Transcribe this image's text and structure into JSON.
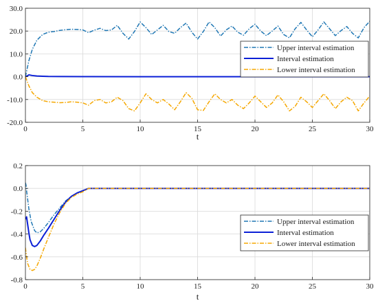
{
  "chart_data": [
    {
      "type": "line",
      "xlabel": "t",
      "ylabel": "",
      "xlim": [
        0,
        30
      ],
      "ylim": [
        -20,
        30
      ],
      "xticks": [
        0,
        5,
        10,
        15,
        20,
        25,
        30
      ],
      "yticks": [
        30,
        20,
        10,
        0,
        -10,
        -20
      ],
      "xtick_labels": [
        "0",
        "5",
        "10",
        "15",
        "20",
        "25",
        "30"
      ],
      "ytick_labels": [
        "30.0",
        "20.0",
        "10.0",
        "0.0",
        "-10.0",
        "-20.0"
      ],
      "grid": true,
      "legend_position": "center-right",
      "series": [
        {
          "name": "Upper interval estimation",
          "color": "#1f77b4",
          "dash": "dashdot",
          "x": [
            0,
            0.3,
            0.6,
            1,
            1.5,
            2,
            2.5,
            3,
            3.5,
            4,
            4.5,
            5,
            5.5,
            6,
            6.5,
            7,
            7.5,
            8,
            8.5,
            9,
            9.5,
            10,
            10.5,
            11,
            11.5,
            12,
            12.5,
            13,
            13.5,
            14,
            14.5,
            15,
            15.5,
            16,
            16.5,
            17,
            17.5,
            18,
            18.5,
            19,
            19.5,
            20,
            20.5,
            21,
            21.5,
            22,
            22.5,
            23,
            23.5,
            24,
            24.5,
            25,
            25.5,
            26,
            26.5,
            27,
            27.5,
            28,
            28.5,
            29,
            29.5,
            30
          ],
          "y": [
            0,
            7,
            12,
            16,
            18.5,
            19.5,
            19.8,
            20.3,
            20.6,
            20.8,
            20.7,
            20.5,
            19.3,
            20.4,
            21.2,
            20.2,
            20.5,
            22.5,
            19,
            16.5,
            19.8,
            24,
            21.5,
            18.5,
            20.5,
            22.5,
            19.8,
            19,
            21.5,
            23.5,
            19.5,
            16.5,
            19.8,
            24,
            21.5,
            17.8,
            20.5,
            22.2,
            19.5,
            18.2,
            21,
            23,
            20,
            18,
            20,
            22.2,
            18.5,
            17,
            21,
            23.8,
            20.5,
            17.5,
            20.5,
            24,
            21,
            18,
            20.2,
            22,
            19,
            17,
            21.5,
            24.3
          ]
        },
        {
          "name": "Interval estimation",
          "color": "#0a1fd6",
          "dash": "solid",
          "x": [
            0,
            0.15,
            0.3,
            0.6,
            1,
            1.5,
            2,
            3,
            5,
            10,
            20,
            30
          ],
          "y": [
            0,
            0.3,
            0.8,
            0.5,
            0.3,
            0.2,
            0.1,
            0.05,
            0.02,
            0,
            0,
            0
          ]
        },
        {
          "name": "Lower interval estimation",
          "color": "#f5a700",
          "dash": "dashdot",
          "x": [
            0,
            0.3,
            0.6,
            1,
            1.5,
            2,
            2.5,
            3,
            3.5,
            4,
            4.5,
            5,
            5.5,
            6,
            6.5,
            7,
            7.5,
            8,
            8.5,
            9,
            9.5,
            10,
            10.5,
            11,
            11.5,
            12,
            12.5,
            13,
            13.5,
            14,
            14.5,
            15,
            15.5,
            16,
            16.5,
            17,
            17.5,
            18,
            18.5,
            19,
            19.5,
            20,
            20.5,
            21,
            21.5,
            22,
            22.5,
            23,
            23.5,
            24,
            24.5,
            25,
            25.5,
            26,
            26.5,
            27,
            27.5,
            28,
            28.5,
            29,
            29.5,
            30
          ],
          "y": [
            0,
            -4,
            -7,
            -9,
            -10.5,
            -11,
            -11.2,
            -11.4,
            -11.3,
            -11,
            -11.2,
            -11.5,
            -12.5,
            -10.5,
            -10,
            -11.5,
            -11,
            -9,
            -10.5,
            -14,
            -15,
            -11.5,
            -7.5,
            -10,
            -11.5,
            -10,
            -12,
            -14.5,
            -11,
            -7,
            -9.5,
            -14.5,
            -14.8,
            -11,
            -7.5,
            -10,
            -11.5,
            -10,
            -12.5,
            -14,
            -11.5,
            -8.5,
            -11,
            -13.5,
            -11.5,
            -8,
            -11,
            -15,
            -13,
            -9,
            -11,
            -13.5,
            -10.5,
            -7.5,
            -10.5,
            -14,
            -11,
            -9,
            -10.5,
            -15,
            -11.5,
            -8.5
          ]
        }
      ]
    },
    {
      "type": "line",
      "xlabel": "t",
      "ylabel": "",
      "xlim": [
        0,
        30
      ],
      "ylim": [
        -0.8,
        0.2
      ],
      "xticks": [
        0,
        5,
        10,
        15,
        20,
        25,
        30
      ],
      "yticks": [
        0.2,
        0,
        -0.2,
        -0.4,
        -0.6,
        -0.8
      ],
      "xtick_labels": [
        "0",
        "5",
        "10",
        "15",
        "20",
        "25",
        "30"
      ],
      "ytick_labels": [
        "0.2",
        "0.0",
        "-0.2",
        "-0.4",
        "-0.6",
        "-0.8"
      ],
      "grid": true,
      "legend_position": "center-right",
      "series": [
        {
          "name": "Upper interval estimation",
          "color": "#1f77b4",
          "dash": "dashdot",
          "x": [
            0,
            0.05,
            0.1,
            0.2,
            0.3,
            0.5,
            0.8,
            1,
            1.3,
            1.6,
            2,
            2.5,
            3,
            3.5,
            4,
            4.5,
            5,
            5.5,
            6,
            10,
            20,
            30
          ],
          "y": [
            0.05,
            0.03,
            -0.02,
            -0.1,
            -0.18,
            -0.29,
            -0.37,
            -0.39,
            -0.38,
            -0.35,
            -0.3,
            -0.23,
            -0.17,
            -0.11,
            -0.07,
            -0.04,
            -0.02,
            0,
            0,
            0,
            0,
            0
          ]
        },
        {
          "name": "Interval estimation",
          "color": "#0a1fd6",
          "dash": "solid",
          "x": [
            0,
            0.1,
            0.2,
            0.3,
            0.4,
            0.6,
            0.8,
            1,
            1.3,
            1.6,
            2,
            2.5,
            3,
            3.5,
            4,
            4.5,
            5,
            5.5,
            6,
            10,
            20,
            30
          ],
          "y": [
            -0.27,
            -0.25,
            -0.32,
            -0.39,
            -0.45,
            -0.5,
            -0.51,
            -0.5,
            -0.46,
            -0.41,
            -0.35,
            -0.27,
            -0.19,
            -0.12,
            -0.07,
            -0.04,
            -0.02,
            0,
            0,
            0,
            0,
            0
          ]
        },
        {
          "name": "Lower interval estimation",
          "color": "#f5a700",
          "dash": "dashdot",
          "x": [
            0,
            0.1,
            0.2,
            0.4,
            0.6,
            0.8,
            1,
            1.3,
            1.6,
            2,
            2.5,
            3,
            3.5,
            4,
            4.5,
            5,
            5.5,
            6,
            10,
            20,
            30
          ],
          "y": [
            -0.52,
            -0.6,
            -0.66,
            -0.71,
            -0.72,
            -0.71,
            -0.68,
            -0.61,
            -0.53,
            -0.43,
            -0.31,
            -0.21,
            -0.13,
            -0.08,
            -0.05,
            -0.03,
            0,
            0,
            0,
            0,
            0
          ]
        }
      ]
    }
  ]
}
